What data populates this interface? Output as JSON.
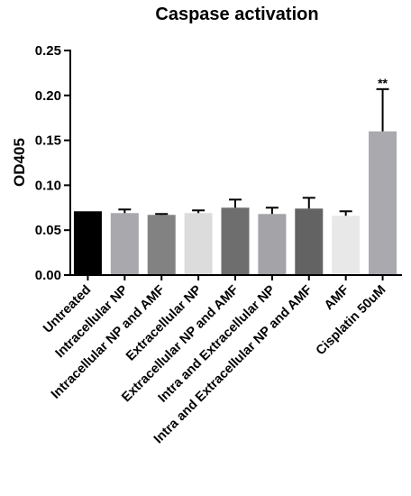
{
  "chart_data": {
    "type": "bar",
    "title": "Caspase activation",
    "xlabel": "",
    "ylabel": "OD405",
    "ylim": [
      0,
      0.25
    ],
    "yticks": [
      "0.00",
      "0.05",
      "0.10",
      "0.15",
      "0.20",
      "0.25"
    ],
    "categories": [
      "Untreated",
      "Intracellular NP",
      "Intracellular NP and AMF",
      "Extracellular NP",
      "Extracellular NP and AMF",
      "Intra and Extracellular NP",
      "Intra and Extracellular NP and AMF",
      "AMF",
      "Cisplatin 50uM"
    ],
    "values": [
      0.071,
      0.069,
      0.067,
      0.069,
      0.075,
      0.068,
      0.074,
      0.066,
      0.16
    ],
    "errors": [
      0.0,
      0.004,
      0.001,
      0.003,
      0.009,
      0.007,
      0.012,
      0.005,
      0.047
    ],
    "colors": [
      "#000000",
      "#a8a8ad",
      "#828282",
      "#dcdcdc",
      "#6e6e6e",
      "#a3a3a8",
      "#636363",
      "#e8e8e8",
      "#a9a9ae"
    ],
    "annotations": [
      {
        "category": "Cisplatin 50uM",
        "text": "**"
      }
    ],
    "grid": false,
    "legend": "none"
  }
}
